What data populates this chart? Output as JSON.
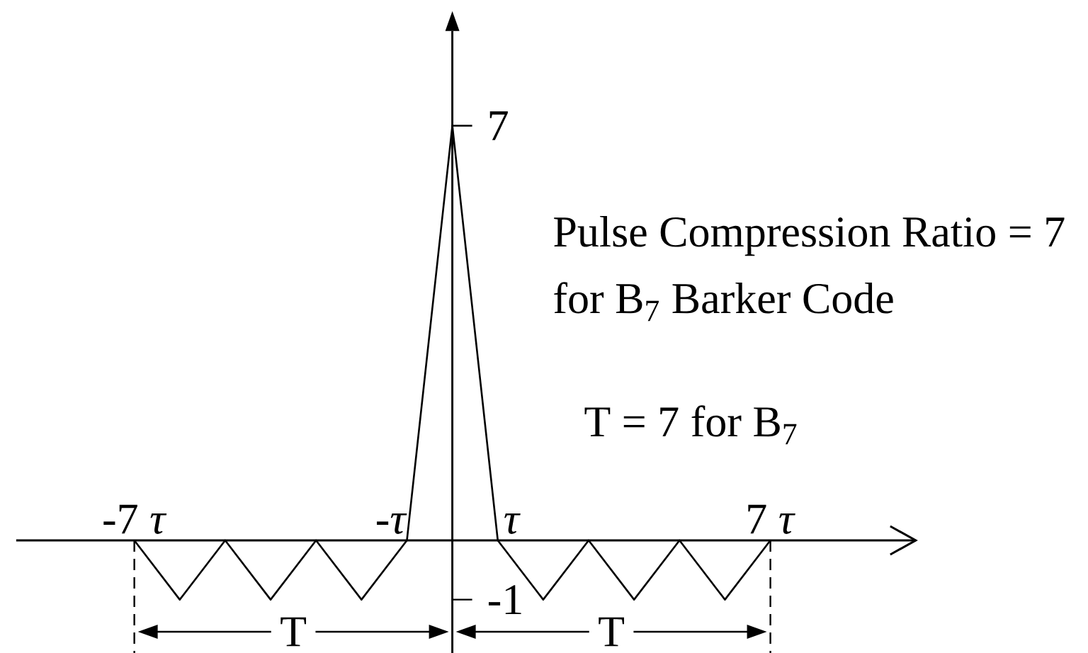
{
  "chart_data": {
    "type": "line",
    "x": [
      -7,
      -6,
      -5,
      -4,
      -3,
      -2,
      -1,
      0,
      1,
      2,
      3,
      4,
      5,
      6,
      7
    ],
    "values": [
      0,
      -1,
      0,
      -1,
      0,
      -1,
      0,
      7,
      0,
      -1,
      0,
      -1,
      0,
      -1,
      0
    ],
    "color": "#000000",
    "marker": "none",
    "line_style": "solid",
    "xlim": [
      -9.6,
      10.2
    ],
    "ylim": [
      -1.9,
      8.6
    ],
    "xticks": [
      {
        "value": -7,
        "label": "-7 *τ*"
      },
      {
        "value": -1,
        "label": "-*τ*"
      },
      {
        "value": 1,
        "label": "*τ*"
      },
      {
        "value": 7,
        "label": "7 *τ*"
      }
    ],
    "yticks": [
      -1,
      7
    ],
    "ref_lines": [
      {
        "axis": "x",
        "value": -7,
        "line_style": "dashed",
        "color": "#000000"
      },
      {
        "axis": "x",
        "value": 7,
        "line_style": "dashed",
        "color": "#000000"
      }
    ],
    "annotations": [
      "Pulse Compression Ratio = 7",
      "for B$_{7}$ Barker Code",
      "T = 7 for B$_{7}$",
      "T",
      "T"
    ]
  }
}
